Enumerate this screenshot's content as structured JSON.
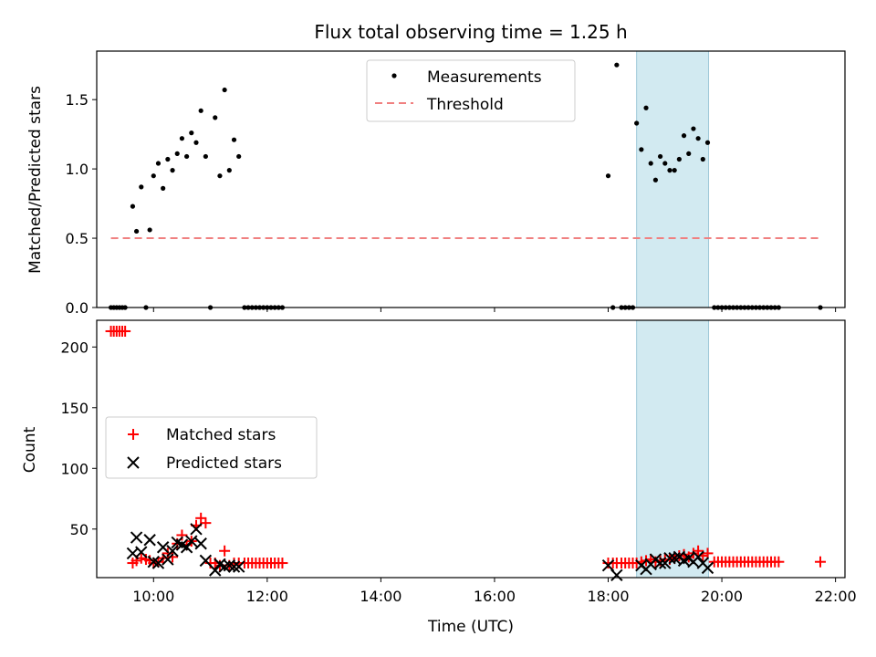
{
  "figure": {
    "title": "Flux total observing time = 1.25 h"
  },
  "chart_data": [
    {
      "type": "scatter",
      "ylabel": "Matched/Predicted stars",
      "xlim": [
        "09:00",
        "22:10"
      ],
      "ylim": [
        0,
        1.85
      ],
      "yticks": [
        0.0,
        0.5,
        1.0,
        1.5
      ],
      "ytick_labels": [
        "0.0",
        "0.5",
        "1.0",
        "1.5"
      ],
      "shaded_interval": [
        "18:30",
        "19:46"
      ],
      "shade_color": "#add8e6",
      "legend_position": "upper center",
      "legend": [
        {
          "label": "Measurements",
          "marker": "dot",
          "color": "#000000"
        },
        {
          "label": "Threshold",
          "marker": "dashed-line",
          "color": "#f08080"
        }
      ],
      "threshold": {
        "value": 0.5,
        "x": [
          "09:15",
          "21:45"
        ],
        "color": "#f08080"
      },
      "measurements": [
        [
          "09:15",
          0
        ],
        [
          "09:18",
          0
        ],
        [
          "09:21",
          0
        ],
        [
          "09:24",
          0
        ],
        [
          "09:27",
          0
        ],
        [
          "09:30",
          0
        ],
        [
          "09:38",
          0.73
        ],
        [
          "09:42",
          0.55
        ],
        [
          "09:47",
          0.87
        ],
        [
          "09:52",
          0
        ],
        [
          "09:56",
          0.56
        ],
        [
          "10:00",
          0.95
        ],
        [
          "10:05",
          1.04
        ],
        [
          "10:10",
          0.86
        ],
        [
          "10:15",
          1.07
        ],
        [
          "10:20",
          0.99
        ],
        [
          "10:25",
          1.11
        ],
        [
          "10:30",
          1.22
        ],
        [
          "10:35",
          1.09
        ],
        [
          "10:40",
          1.26
        ],
        [
          "10:45",
          1.19
        ],
        [
          "10:50",
          1.42
        ],
        [
          "10:55",
          1.09
        ],
        [
          "11:00",
          0
        ],
        [
          "11:05",
          1.37
        ],
        [
          "11:10",
          0.95
        ],
        [
          "11:15",
          1.57
        ],
        [
          "11:20",
          0.99
        ],
        [
          "11:25",
          1.21
        ],
        [
          "11:30",
          1.09
        ],
        [
          "11:36",
          0
        ],
        [
          "11:40",
          0
        ],
        [
          "11:44",
          0
        ],
        [
          "11:48",
          0
        ],
        [
          "11:52",
          0
        ],
        [
          "11:56",
          0
        ],
        [
          "12:00",
          0
        ],
        [
          "12:04",
          0
        ],
        [
          "12:08",
          0
        ],
        [
          "12:12",
          0
        ],
        [
          "12:16",
          0
        ],
        [
          "18:00",
          0.95
        ],
        [
          "18:05",
          0
        ],
        [
          "18:09",
          1.75
        ],
        [
          "18:14",
          0
        ],
        [
          "18:18",
          0
        ],
        [
          "18:22",
          0
        ],
        [
          "18:26",
          0
        ],
        [
          "18:30",
          1.33
        ],
        [
          "18:35",
          1.14
        ],
        [
          "18:40",
          1.44
        ],
        [
          "18:45",
          1.04
        ],
        [
          "18:50",
          0.92
        ],
        [
          "18:55",
          1.09
        ],
        [
          "19:00",
          1.04
        ],
        [
          "19:05",
          0.99
        ],
        [
          "19:10",
          0.99
        ],
        [
          "19:15",
          1.07
        ],
        [
          "19:20",
          1.24
        ],
        [
          "19:25",
          1.11
        ],
        [
          "19:30",
          1.29
        ],
        [
          "19:35",
          1.22
        ],
        [
          "19:40",
          1.07
        ],
        [
          "19:45",
          1.19
        ],
        [
          "19:52",
          0
        ],
        [
          "19:56",
          0
        ],
        [
          "20:00",
          0
        ],
        [
          "20:04",
          0
        ],
        [
          "20:08",
          0
        ],
        [
          "20:12",
          0
        ],
        [
          "20:16",
          0
        ],
        [
          "20:20",
          0
        ],
        [
          "20:24",
          0
        ],
        [
          "20:28",
          0
        ],
        [
          "20:32",
          0
        ],
        [
          "20:36",
          0
        ],
        [
          "20:40",
          0
        ],
        [
          "20:44",
          0
        ],
        [
          "20:48",
          0
        ],
        [
          "20:52",
          0
        ],
        [
          "20:56",
          0
        ],
        [
          "21:00",
          0
        ],
        [
          "21:44",
          0
        ]
      ]
    },
    {
      "type": "scatter",
      "xlabel": "Time (UTC)",
      "ylabel": "Count",
      "xlim": [
        "09:00",
        "22:10"
      ],
      "ylim": [
        10,
        222
      ],
      "yticks": [
        50,
        100,
        150,
        200
      ],
      "ytick_labels": [
        "50",
        "100",
        "150",
        "200"
      ],
      "xticks": [
        "10:00",
        "12:00",
        "14:00",
        "16:00",
        "18:00",
        "20:00",
        "22:00"
      ],
      "xtick_labels": [
        "10:00",
        "12:00",
        "14:00",
        "16:00",
        "18:00",
        "20:00",
        "22:00"
      ],
      "shaded_interval": [
        "18:30",
        "19:46"
      ],
      "shade_color": "#add8e6",
      "legend_position": "center left",
      "series": [
        {
          "name": "Matched stars",
          "marker": "plus",
          "color": "#ff0000",
          "points": [
            [
              "09:15",
              213
            ],
            [
              "09:18",
              213
            ],
            [
              "09:21",
              213
            ],
            [
              "09:24",
              213
            ],
            [
              "09:27",
              213
            ],
            [
              "09:30",
              213
            ],
            [
              "09:38",
              22
            ],
            [
              "09:42",
              24
            ],
            [
              "09:47",
              26
            ],
            [
              "09:52",
              25
            ],
            [
              "09:56",
              24
            ],
            [
              "10:00",
              22
            ],
            [
              "10:05",
              23
            ],
            [
              "10:10",
              26
            ],
            [
              "10:15",
              30
            ],
            [
              "10:20",
              27
            ],
            [
              "10:25",
              38
            ],
            [
              "10:30",
              45
            ],
            [
              "10:35",
              37
            ],
            [
              "10:40",
              40
            ],
            [
              "10:45",
              53
            ],
            [
              "10:50",
              59
            ],
            [
              "10:55",
              55
            ],
            [
              "11:00",
              22
            ],
            [
              "11:05",
              22
            ],
            [
              "11:10",
              20
            ],
            [
              "11:15",
              32
            ],
            [
              "11:20",
              20
            ],
            [
              "11:25",
              22
            ],
            [
              "11:30",
              22
            ],
            [
              "11:36",
              22
            ],
            [
              "11:40",
              22
            ],
            [
              "11:44",
              22
            ],
            [
              "11:48",
              22
            ],
            [
              "11:52",
              22
            ],
            [
              "11:56",
              22
            ],
            [
              "12:00",
              22
            ],
            [
              "12:04",
              22
            ],
            [
              "12:08",
              22
            ],
            [
              "12:12",
              22
            ],
            [
              "12:16",
              22
            ],
            [
              "18:00",
              22
            ],
            [
              "18:05",
              22
            ],
            [
              "18:09",
              22
            ],
            [
              "18:14",
              22
            ],
            [
              "18:18",
              22
            ],
            [
              "18:22",
              22
            ],
            [
              "18:26",
              22
            ],
            [
              "18:30",
              22
            ],
            [
              "18:35",
              23
            ],
            [
              "18:40",
              24
            ],
            [
              "18:45",
              25
            ],
            [
              "18:50",
              23
            ],
            [
              "18:55",
              24
            ],
            [
              "19:00",
              25
            ],
            [
              "19:05",
              25
            ],
            [
              "19:10",
              26
            ],
            [
              "19:15",
              28
            ],
            [
              "19:20",
              29
            ],
            [
              "19:25",
              27
            ],
            [
              "19:30",
              30
            ],
            [
              "19:35",
              32
            ],
            [
              "19:40",
              28
            ],
            [
              "19:45",
              30
            ],
            [
              "19:52",
              23
            ],
            [
              "19:56",
              23
            ],
            [
              "20:00",
              23
            ],
            [
              "20:04",
              23
            ],
            [
              "20:08",
              23
            ],
            [
              "20:12",
              23
            ],
            [
              "20:16",
              23
            ],
            [
              "20:20",
              23
            ],
            [
              "20:24",
              23
            ],
            [
              "20:28",
              23
            ],
            [
              "20:32",
              23
            ],
            [
              "20:36",
              23
            ],
            [
              "20:40",
              23
            ],
            [
              "20:44",
              23
            ],
            [
              "20:48",
              23
            ],
            [
              "20:52",
              23
            ],
            [
              "20:56",
              23
            ],
            [
              "21:00",
              23
            ],
            [
              "21:44",
              23
            ]
          ]
        },
        {
          "name": "Predicted stars",
          "marker": "x",
          "color": "#000000",
          "points": [
            [
              "09:38",
              30
            ],
            [
              "09:42",
              43
            ],
            [
              "09:47",
              31
            ],
            [
              "09:56",
              41
            ],
            [
              "10:00",
              23
            ],
            [
              "10:05",
              22
            ],
            [
              "10:10",
              35
            ],
            [
              "10:15",
              25
            ],
            [
              "10:20",
              32
            ],
            [
              "10:25",
              39
            ],
            [
              "10:30",
              37
            ],
            [
              "10:35",
              35
            ],
            [
              "10:40",
              40
            ],
            [
              "10:45",
              50
            ],
            [
              "10:50",
              38
            ],
            [
              "10:55",
              24
            ],
            [
              "11:05",
              16
            ],
            [
              "11:10",
              21
            ],
            [
              "11:15",
              19
            ],
            [
              "11:20",
              20
            ],
            [
              "11:25",
              19
            ],
            [
              "11:30",
              19
            ],
            [
              "18:00",
              20
            ],
            [
              "18:09",
              12
            ],
            [
              "18:35",
              20
            ],
            [
              "18:40",
              17
            ],
            [
              "18:45",
              21
            ],
            [
              "18:50",
              25
            ],
            [
              "18:55",
              22
            ],
            [
              "19:00",
              22
            ],
            [
              "19:05",
              26
            ],
            [
              "19:10",
              26
            ],
            [
              "19:15",
              27
            ],
            [
              "19:20",
              24
            ],
            [
              "19:25",
              26
            ],
            [
              "19:30",
              23
            ],
            [
              "19:35",
              27
            ],
            [
              "19:40",
              22
            ],
            [
              "19:45",
              18
            ]
          ]
        }
      ]
    }
  ]
}
